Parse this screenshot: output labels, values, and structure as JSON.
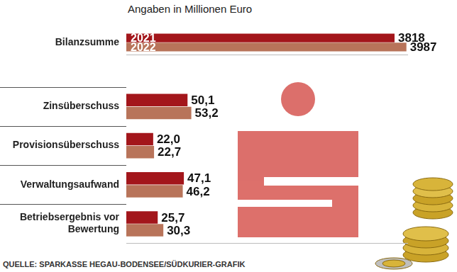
{
  "title": "Angaben in Millionen Euro",
  "source": "QUELLE: SPARKASSE HEGAU-BODENSEE/SÜDKURIER-GRAFIK",
  "chart_data": [
    {
      "type": "bar",
      "orientation": "horizontal",
      "categories": [
        "Bilanzsumme"
      ],
      "series": [
        {
          "name": "2021",
          "color": "#a3161b",
          "values": [
            3818
          ]
        },
        {
          "name": "2022",
          "color": "#b8745a",
          "values": [
            3987
          ]
        }
      ],
      "xlim": [
        0,
        4000
      ],
      "tick_labels": "y",
      "grid": false,
      "data_labels": true
    },
    {
      "type": "bar",
      "orientation": "horizontal",
      "categories": [
        "Zinsüberschuss",
        "Provisionsüberschuss",
        "Verwaltungsaufwand",
        "Betriebsergebnis vor Bewertung"
      ],
      "series": [
        {
          "color": "#a3161b",
          "values": [
            50.1,
            22.0,
            47.1,
            25.7
          ],
          "value_labels": [
            "50,1",
            "22,0",
            "47,1",
            "25,7"
          ]
        },
        {
          "color": "#b8745a",
          "values": [
            53.2,
            22.7,
            46.2,
            30.3
          ],
          "value_labels": [
            "53,2",
            "22,7",
            "46,2",
            "30,3"
          ]
        }
      ],
      "xlim": [
        0,
        230
      ],
      "tick_labels": "y",
      "grid": false,
      "data_labels": true
    }
  ]
}
